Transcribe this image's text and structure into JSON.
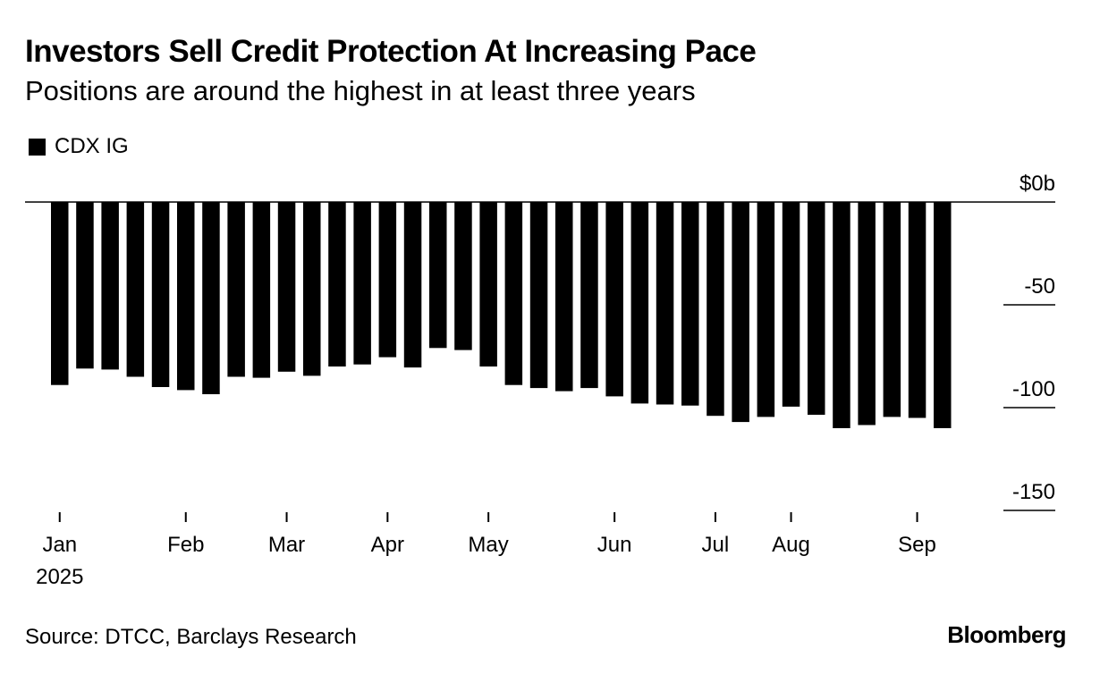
{
  "header": {
    "title": "Investors Sell Credit Protection At Increasing Pace",
    "subtitle": "Positions are around the highest in at least three years"
  },
  "legend": {
    "label": "CDX IG"
  },
  "footer": {
    "source": "Source: DTCC, Barclays Research",
    "brand": "Bloomberg"
  },
  "colors": {
    "bar": "#000000",
    "axis": "#000000",
    "background": "#ffffff"
  },
  "chart_data": {
    "type": "bar",
    "title": "Investors Sell Credit Protection At Increasing Pace",
    "subtitle": "Positions are around the highest in at least three years",
    "xlabel": "",
    "ylabel": "",
    "ylim": [
      -150,
      0
    ],
    "y_ticks": [
      0,
      -50,
      -100,
      -150
    ],
    "y_tick_labels": [
      "$0b",
      "-50",
      "-100",
      "-150"
    ],
    "y_axis_position": "right",
    "grid": false,
    "legend_position": "top-left",
    "x_tick_labels": [
      {
        "label": "Jan",
        "sub": "2025",
        "at_bar": 0
      },
      {
        "label": "Feb",
        "sub": "",
        "at_bar": 5
      },
      {
        "label": "Mar",
        "sub": "",
        "at_bar": 9
      },
      {
        "label": "Apr",
        "sub": "",
        "at_bar": 13
      },
      {
        "label": "May",
        "sub": "",
        "at_bar": 17
      },
      {
        "label": "Jun",
        "sub": "",
        "at_bar": 22
      },
      {
        "label": "Jul",
        "sub": "",
        "at_bar": 26
      },
      {
        "label": "Aug",
        "sub": "",
        "at_bar": 29
      },
      {
        "label": "Sep",
        "sub": "",
        "at_bar": 34
      }
    ],
    "series": [
      {
        "name": "CDX IG",
        "values": [
          -89,
          -81,
          -81.5,
          -85,
          -90,
          -91.5,
          -93.5,
          -85,
          -85.5,
          -82.5,
          -84.5,
          -80,
          -79,
          -75.5,
          -80.5,
          -71,
          -72,
          -80,
          -89,
          -90.5,
          -92,
          -90.5,
          -94.5,
          -98,
          -98.5,
          -99,
          -104,
          -107,
          -104.5,
          -99.5,
          -103.5,
          -110,
          -108.5,
          -104.5,
          -105,
          -110
        ]
      }
    ]
  }
}
